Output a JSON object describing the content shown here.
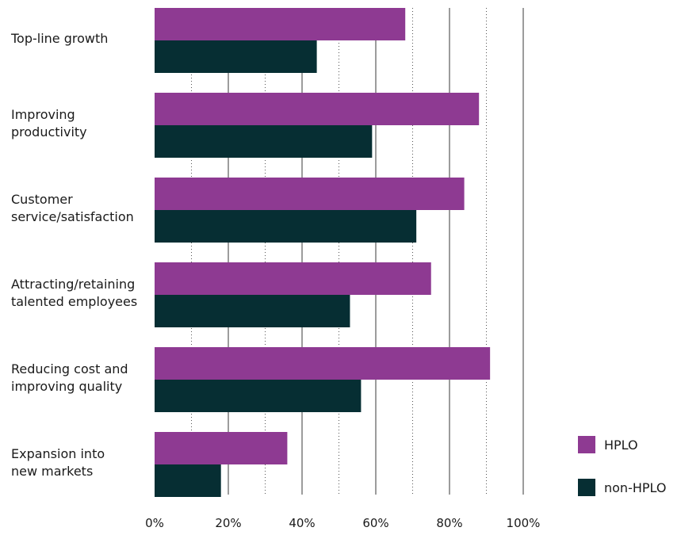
{
  "chart_data": {
    "type": "bar",
    "orientation": "horizontal",
    "categories": [
      [
        "Top-line growth"
      ],
      [
        "Improving",
        "productivity"
      ],
      [
        "Customer",
        "service/satisfaction"
      ],
      [
        "Attracting/retaining",
        "talented employees"
      ],
      [
        "Reducing cost and",
        "improving quality"
      ],
      [
        "Expansion into",
        "new markets"
      ]
    ],
    "series": [
      {
        "name": "HPLO",
        "color": "#8e3a92",
        "values": [
          68,
          88,
          84,
          75,
          91,
          36
        ]
      },
      {
        "name": "non-HPLO",
        "color": "#062e33",
        "values": [
          44,
          59,
          71,
          53,
          56,
          18
        ]
      }
    ],
    "xlim": [
      0,
      100
    ],
    "ticks": [
      "0%",
      "20%",
      "40%",
      "60%",
      "80%",
      "100%"
    ],
    "tick_values": [
      0,
      20,
      40,
      60,
      80,
      100
    ],
    "grid": true,
    "legend": "bottom-right"
  }
}
